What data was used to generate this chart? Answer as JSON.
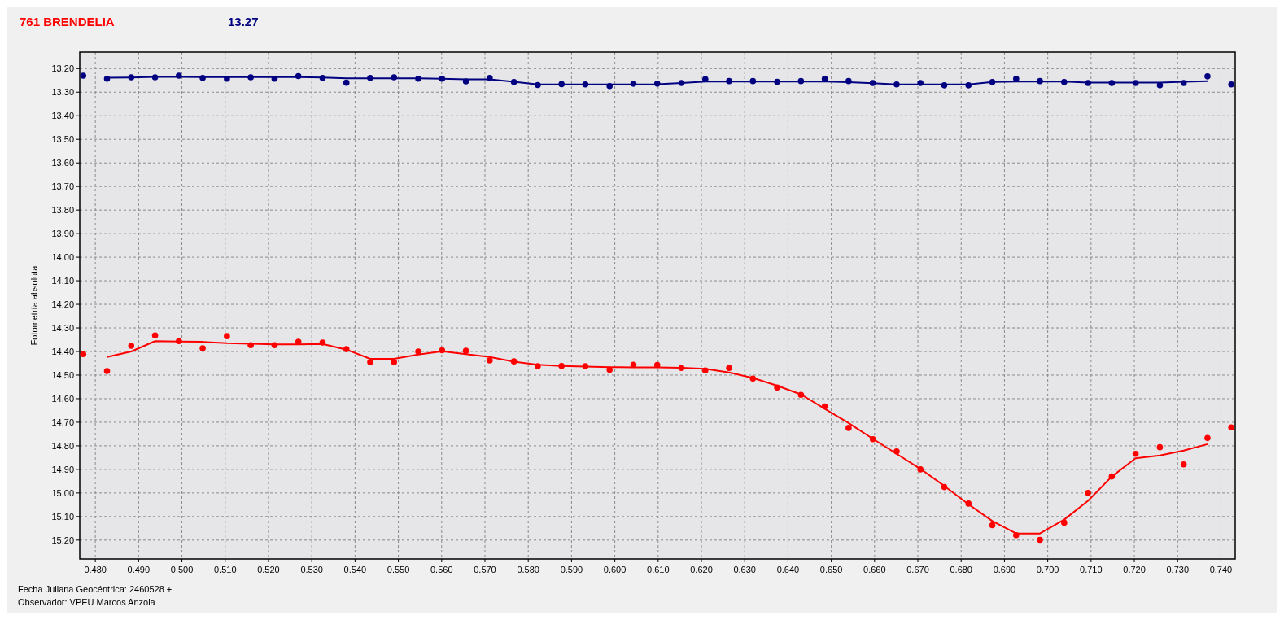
{
  "chart_data": {
    "type": "scatter",
    "title": "761 BRENDELIA",
    "subtitle": "13.27",
    "ylabel": "Fotometría absoluta",
    "annotations": [
      "Fecha Juliana Geocéntrica: 2460528 +",
      "Observador: VPEU Marcos Anzola"
    ],
    "x": [
      0.4772,
      0.4827,
      0.4883,
      0.4938,
      0.4993,
      0.5048,
      0.5104,
      0.5159,
      0.5214,
      0.5269,
      0.5325,
      0.538,
      0.5435,
      0.549,
      0.5546,
      0.5601,
      0.5656,
      0.5711,
      0.5767,
      0.5822,
      0.5877,
      0.5932,
      0.5988,
      0.6043,
      0.6098,
      0.6154,
      0.6209,
      0.6264,
      0.6319,
      0.6375,
      0.643,
      0.6485,
      0.654,
      0.6596,
      0.6651,
      0.6706,
      0.6761,
      0.6817,
      0.6872,
      0.6927,
      0.6982,
      0.7038,
      0.7093,
      0.7148,
      0.7203,
      0.7259,
      0.7314,
      0.7369,
      0.7424
    ],
    "series": [
      {
        "marker": "circle",
        "color": "#000080",
        "values": [
          13.23,
          13.243,
          13.237,
          13.237,
          13.23,
          13.24,
          13.243,
          13.237,
          13.243,
          13.232,
          13.24,
          13.26,
          13.24,
          13.237,
          13.243,
          13.243,
          13.254,
          13.24,
          13.257,
          13.27,
          13.266,
          13.267,
          13.274,
          13.264,
          13.264,
          13.261,
          13.245,
          13.253,
          13.253,
          13.256,
          13.253,
          13.243,
          13.253,
          13.261,
          13.267,
          13.261,
          13.271,
          13.271,
          13.257,
          13.243,
          13.253,
          13.257,
          13.261,
          13.261,
          13.261,
          13.271,
          13.261,
          13.233,
          13.267
        ]
      },
      {
        "marker": "circle",
        "color": "#ff0000",
        "values": [
          14.411,
          14.483,
          14.376,
          14.332,
          14.356,
          14.386,
          14.335,
          14.373,
          14.373,
          14.359,
          14.362,
          14.39,
          14.445,
          14.445,
          14.4,
          14.395,
          14.397,
          14.438,
          14.442,
          14.462,
          14.461,
          14.462,
          14.478,
          14.456,
          14.457,
          14.47,
          14.48,
          14.47,
          14.515,
          14.553,
          14.584,
          14.633,
          14.724,
          14.772,
          14.824,
          14.9,
          14.975,
          15.045,
          15.137,
          15.179,
          15.199,
          15.126,
          15.0,
          14.93,
          14.834,
          14.806,
          14.879,
          14.767,
          14.722
        ]
      },
      {
        "type": "line",
        "marker": "none",
        "line_style": "solid",
        "color": "#000080",
        "x": [
          0.4827,
          0.4883,
          0.4938,
          0.4993,
          0.5048,
          0.5104,
          0.5159,
          0.5214,
          0.5269,
          0.5325,
          0.538,
          0.5435,
          0.549,
          0.5546,
          0.5601,
          0.5656,
          0.5711,
          0.5767,
          0.5822,
          0.5877,
          0.5932,
          0.5988,
          0.6043,
          0.6098,
          0.6154,
          0.6209,
          0.6264,
          0.6319,
          0.6375,
          0.643,
          0.6485,
          0.654,
          0.6596,
          0.6651,
          0.6706,
          0.6761,
          0.6817,
          0.6872,
          0.6927,
          0.6982,
          0.7038,
          0.7093,
          0.7148,
          0.7203,
          0.7259,
          0.7314,
          0.7369
        ],
        "values": [
          13.239,
          13.238,
          13.235,
          13.235,
          13.236,
          13.236,
          13.236,
          13.236,
          13.236,
          13.238,
          13.241,
          13.241,
          13.241,
          13.241,
          13.243,
          13.246,
          13.246,
          13.256,
          13.267,
          13.267,
          13.267,
          13.267,
          13.267,
          13.266,
          13.261,
          13.255,
          13.255,
          13.255,
          13.255,
          13.255,
          13.255,
          13.258,
          13.262,
          13.267,
          13.267,
          13.267,
          13.267,
          13.257,
          13.255,
          13.255,
          13.255,
          13.259,
          13.259,
          13.259,
          13.259,
          13.256,
          13.253
        ]
      },
      {
        "type": "line",
        "marker": "none",
        "line_style": "solid",
        "color": "#ff0000",
        "x": [
          0.4827,
          0.4883,
          0.4938,
          0.4993,
          0.5048,
          0.5104,
          0.5159,
          0.5214,
          0.5269,
          0.5325,
          0.538,
          0.5435,
          0.549,
          0.5546,
          0.5601,
          0.5656,
          0.5711,
          0.5767,
          0.5822,
          0.5877,
          0.5932,
          0.5988,
          0.6043,
          0.6098,
          0.6154,
          0.6209,
          0.6264,
          0.6319,
          0.6375,
          0.643,
          0.6485,
          0.654,
          0.6596,
          0.6651,
          0.6706,
          0.6761,
          0.6817,
          0.6872,
          0.6927,
          0.6982,
          0.7038,
          0.7093,
          0.7148,
          0.7203,
          0.7259,
          0.7314,
          0.7369
        ],
        "values": [
          14.423,
          14.4,
          14.356,
          14.358,
          14.359,
          14.365,
          14.367,
          14.37,
          14.37,
          14.368,
          14.392,
          14.431,
          14.431,
          14.413,
          14.399,
          14.411,
          14.423,
          14.443,
          14.456,
          14.461,
          14.464,
          14.466,
          14.467,
          14.467,
          14.469,
          14.473,
          14.489,
          14.512,
          14.545,
          14.582,
          14.643,
          14.703,
          14.77,
          14.834,
          14.898,
          14.97,
          15.048,
          15.119,
          15.172,
          15.172,
          15.113,
          15.033,
          14.93,
          14.853,
          14.841,
          14.82,
          14.793
        ]
      }
    ],
    "xlim": [
      0.4764,
      0.7433
    ],
    "xticks": [
      {
        "value": 0.48,
        "label": "0.480"
      },
      {
        "value": 0.49,
        "label": "0.490"
      },
      {
        "value": 0.5,
        "label": "0.500"
      },
      {
        "value": 0.51,
        "label": "0.510"
      },
      {
        "value": 0.52,
        "label": "0.520"
      },
      {
        "value": 0.53,
        "label": "0.530"
      },
      {
        "value": 0.54,
        "label": "0.540"
      },
      {
        "value": 0.55,
        "label": "0.550"
      },
      {
        "value": 0.56,
        "label": "0.560"
      },
      {
        "value": 0.57,
        "label": "0.570"
      },
      {
        "value": 0.58,
        "label": "0.580"
      },
      {
        "value": 0.59,
        "label": "0.590"
      },
      {
        "value": 0.6,
        "label": "0.600"
      },
      {
        "value": 0.61,
        "label": "0.610"
      },
      {
        "value": 0.62,
        "label": "0.620"
      },
      {
        "value": 0.63,
        "label": "0.630"
      },
      {
        "value": 0.64,
        "label": "0.640"
      },
      {
        "value": 0.65,
        "label": "0.650"
      },
      {
        "value": 0.66,
        "label": "0.660"
      },
      {
        "value": 0.67,
        "label": "0.670"
      },
      {
        "value": 0.68,
        "label": "0.680"
      },
      {
        "value": 0.69,
        "label": "0.690"
      },
      {
        "value": 0.7,
        "label": "0.700"
      },
      {
        "value": 0.71,
        "label": "0.710"
      },
      {
        "value": 0.72,
        "label": "0.720"
      },
      {
        "value": 0.73,
        "label": "0.730"
      },
      {
        "value": 0.74,
        "label": "0.740"
      }
    ],
    "ylim": [
      15.28,
      13.13
    ],
    "yticks": [
      {
        "value": 13.2,
        "label": "13.20"
      },
      {
        "value": 13.3,
        "label": "13.30"
      },
      {
        "value": 13.4,
        "label": "13.40"
      },
      {
        "value": 13.5,
        "label": "13.50"
      },
      {
        "value": 13.6,
        "label": "13.60"
      },
      {
        "value": 13.7,
        "label": "13.70"
      },
      {
        "value": 13.8,
        "label": "13.80"
      },
      {
        "value": 13.9,
        "label": "13.90"
      },
      {
        "value": 14.0,
        "label": "14.00"
      },
      {
        "value": 14.1,
        "label": "14.10"
      },
      {
        "value": 14.2,
        "label": "14.20"
      },
      {
        "value": 14.3,
        "label": "14.30"
      },
      {
        "value": 14.4,
        "label": "14.40"
      },
      {
        "value": 14.5,
        "label": "14.50"
      },
      {
        "value": 14.6,
        "label": "14.60"
      },
      {
        "value": 14.7,
        "label": "14.70"
      },
      {
        "value": 14.8,
        "label": "14.80"
      },
      {
        "value": 14.9,
        "label": "14.90"
      },
      {
        "value": 15.0,
        "label": "15.00"
      },
      {
        "value": 15.1,
        "label": "15.10"
      },
      {
        "value": 15.2,
        "label": "15.20"
      }
    ],
    "grid": true
  }
}
